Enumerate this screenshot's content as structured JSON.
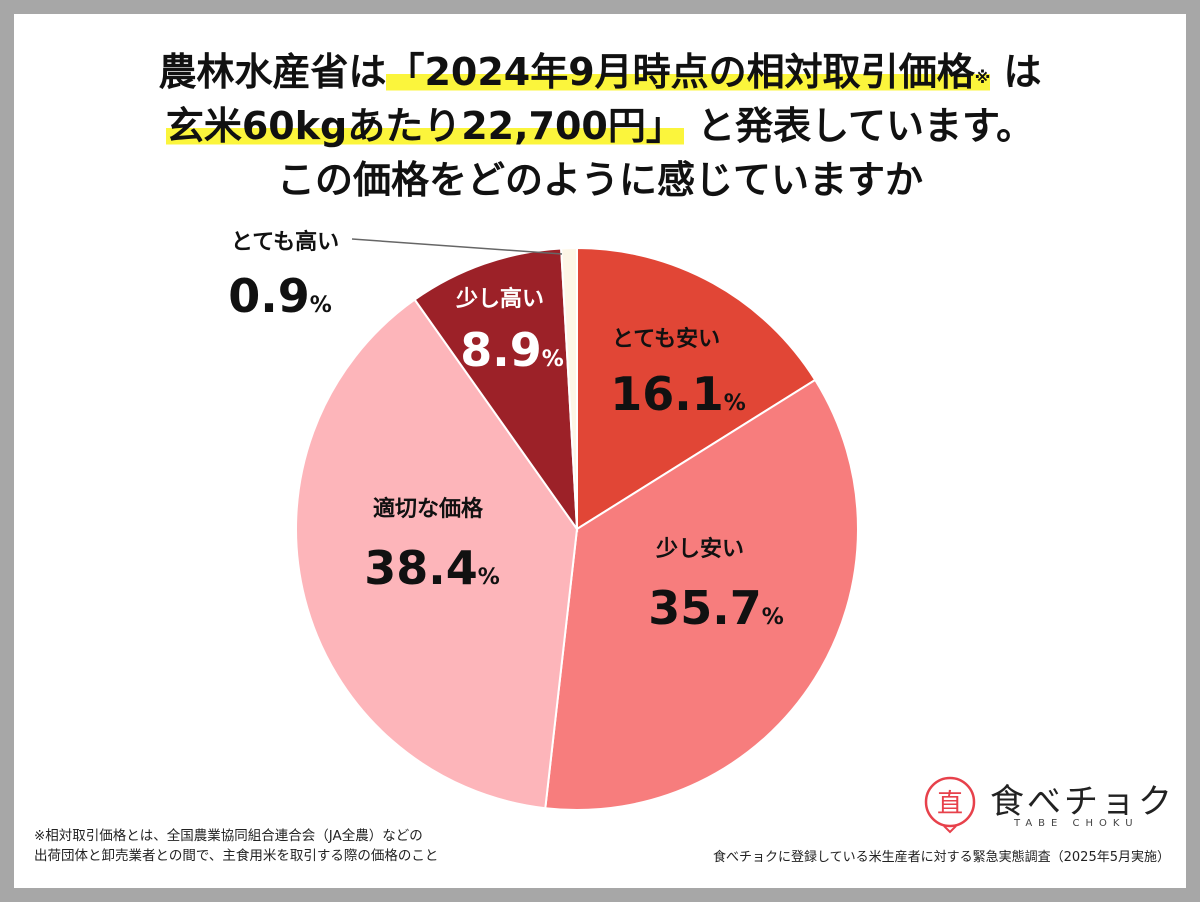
{
  "title": {
    "line1_a": "農林水産省は",
    "line1_b": "「2024年9月時点の相対取引価格",
    "line1_note": "※",
    "line1_c": "は",
    "line2_a": "玄米60kgあたり22,700円」",
    "line2_b": "と発表しています。",
    "line3": "この価格をどのように感じていますか"
  },
  "chart_data": {
    "type": "pie",
    "title": "農林水産省は「2024年9月時点の相対取引価格※は玄米60kgあたり22,700円」と発表しています。この価格をどのように感じていますか",
    "start_angle_deg": 0,
    "direction": "clockwise",
    "slices": [
      {
        "label": "とても安い",
        "value": 16.1,
        "color": "#e14636",
        "text": "16.1"
      },
      {
        "label": "少し安い",
        "value": 35.7,
        "color": "#f77d7d",
        "text": "35.7"
      },
      {
        "label": "適切な価格",
        "value": 38.4,
        "color": "#fdb5ba",
        "text": "38.4"
      },
      {
        "label": "少し高い",
        "value": 8.9,
        "color": "#9c2128",
        "text": "8.9"
      },
      {
        "label": "とても高い",
        "value": 0.9,
        "color": "#fdf6e6",
        "text": "0.9"
      }
    ],
    "unit": "%"
  },
  "footnote": {
    "line1": "※相対取引価格とは、全国農業協同組合連合会（JA全農）などの",
    "line2": "出荷団体と卸売業者との間で、主食用米を取引する際の価格のこと"
  },
  "source": "食べチョクに登録している米生産者に対する緊急実態調査（2025年5月実施）",
  "logo": {
    "name": "食べチョク",
    "sub": "TABE CHOKU",
    "mark_text": "直"
  }
}
